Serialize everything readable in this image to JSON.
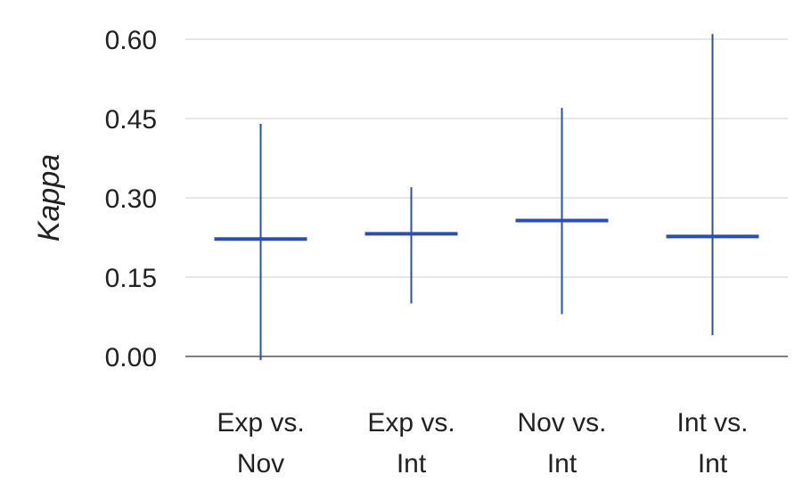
{
  "chart_data": {
    "type": "errorbar",
    "title": "",
    "ylabel": "Kappa",
    "xlabel": "",
    "ylim": [
      0,
      0.6
    ],
    "yticks": [
      "0.00",
      "0.15",
      "0.30",
      "0.45",
      "0.60"
    ],
    "grid": true,
    "categories": [
      {
        "line1": "Exp vs.",
        "line2": "Nov"
      },
      {
        "line1": "Exp vs.",
        "line2": "Int"
      },
      {
        "line1": "Nov vs.",
        "line2": "Int"
      },
      {
        "line1": "Int vs.",
        "line2": "Int"
      }
    ],
    "series": [
      {
        "values": [
          0.222,
          0.232,
          0.257,
          0.227
        ],
        "lower": [
          -0.007,
          0.1,
          0.08,
          0.04
        ],
        "upper": [
          0.44,
          0.32,
          0.47,
          0.61
        ]
      }
    ],
    "color": "#2b4fb0"
  }
}
